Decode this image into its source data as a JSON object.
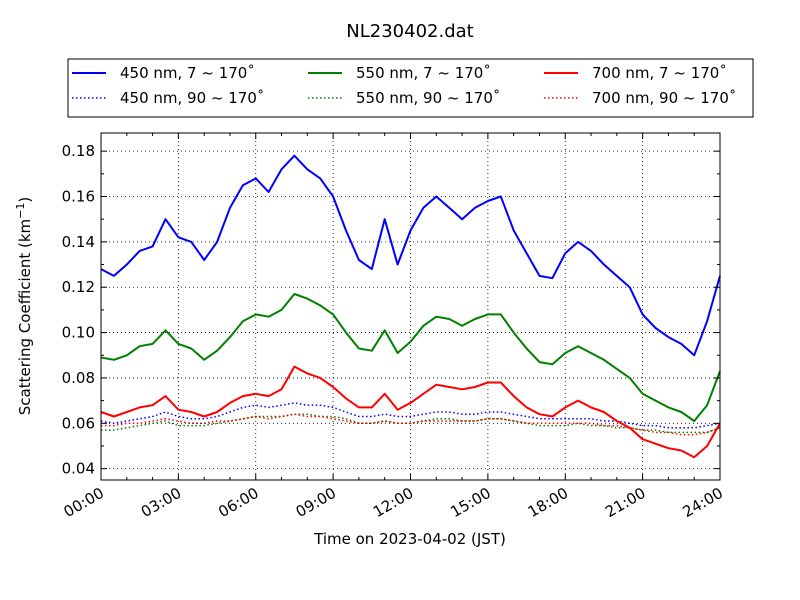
{
  "chart_data": {
    "type": "line",
    "title": "NL230402.dat",
    "xlabel": "Time on 2023-04-02 (JST)",
    "ylabel_text": "Scattering Coefficient (km",
    "ylabel_sup": "−1",
    "ylabel_close": ")",
    "xlim": [
      0,
      24
    ],
    "ylim": [
      0.035,
      0.188
    ],
    "grid": true,
    "legend_position": "top (above plot)",
    "x_ticks": [
      0,
      3,
      6,
      9,
      12,
      15,
      18,
      21,
      24
    ],
    "x_tick_labels": [
      "00:00",
      "03:00",
      "06:00",
      "09:00",
      "12:00",
      "15:00",
      "18:00",
      "21:00",
      "24:00"
    ],
    "y_ticks": [
      0.04,
      0.06,
      0.08,
      0.1,
      0.12,
      0.14,
      0.16,
      0.18
    ],
    "y_tick_labels": [
      "0.04",
      "0.06",
      "0.08",
      "0.10",
      "0.12",
      "0.14",
      "0.16",
      "0.18"
    ],
    "x_units": "hours",
    "series": [
      {
        "name": "450 nm, 7 ~ 170˚",
        "color": "#0000ff",
        "style": "solid",
        "x": [
          0,
          0.5,
          1,
          1.5,
          2,
          2.5,
          3,
          3.5,
          4,
          4.5,
          5,
          5.5,
          6,
          6.5,
          7,
          7.5,
          8,
          8.5,
          9,
          9.5,
          10,
          10.5,
          11,
          11.5,
          12,
          12.5,
          13,
          13.5,
          14,
          14.5,
          15,
          15.5,
          16,
          16.5,
          17,
          17.5,
          18,
          18.5,
          19,
          19.5,
          20,
          20.5,
          21,
          21.5,
          22,
          22.5,
          23,
          23.5,
          24
        ],
        "values": [
          0.128,
          0.125,
          0.13,
          0.136,
          0.138,
          0.15,
          0.142,
          0.14,
          0.132,
          0.14,
          0.155,
          0.165,
          0.168,
          0.162,
          0.172,
          0.178,
          0.172,
          0.168,
          0.16,
          0.145,
          0.132,
          0.128,
          0.15,
          0.13,
          0.145,
          0.155,
          0.16,
          0.155,
          0.15,
          0.155,
          0.158,
          0.16,
          0.145,
          0.135,
          0.125,
          0.124,
          0.135,
          0.14,
          0.136,
          0.13,
          0.125,
          0.12,
          0.108,
          0.102,
          0.098,
          0.095,
          0.09,
          0.105,
          0.125
        ]
      },
      {
        "name": "450 nm, 90 ~ 170˚",
        "color": "#0000ff",
        "style": "dotted",
        "x": [
          0,
          0.5,
          1,
          1.5,
          2,
          2.5,
          3,
          3.5,
          4,
          4.5,
          5,
          5.5,
          6,
          6.5,
          7,
          7.5,
          8,
          8.5,
          9,
          9.5,
          10,
          10.5,
          11,
          11.5,
          12,
          12.5,
          13,
          13.5,
          14,
          14.5,
          15,
          15.5,
          16,
          16.5,
          17,
          17.5,
          18,
          18.5,
          19,
          19.5,
          20,
          20.5,
          21,
          21.5,
          22,
          22.5,
          23,
          23.5,
          24
        ],
        "values": [
          0.061,
          0.06,
          0.061,
          0.062,
          0.063,
          0.065,
          0.063,
          0.062,
          0.062,
          0.063,
          0.065,
          0.067,
          0.068,
          0.067,
          0.068,
          0.069,
          0.068,
          0.068,
          0.067,
          0.065,
          0.063,
          0.063,
          0.064,
          0.063,
          0.063,
          0.064,
          0.065,
          0.065,
          0.064,
          0.064,
          0.065,
          0.065,
          0.064,
          0.063,
          0.062,
          0.062,
          0.062,
          0.062,
          0.062,
          0.061,
          0.061,
          0.06,
          0.059,
          0.059,
          0.058,
          0.058,
          0.058,
          0.059,
          0.06
        ]
      },
      {
        "name": "550 nm, 7 ~ 170˚",
        "color": "#008000",
        "style": "solid",
        "x": [
          0,
          0.5,
          1,
          1.5,
          2,
          2.5,
          3,
          3.5,
          4,
          4.5,
          5,
          5.5,
          6,
          6.5,
          7,
          7.5,
          8,
          8.5,
          9,
          9.5,
          10,
          10.5,
          11,
          11.5,
          12,
          12.5,
          13,
          13.5,
          14,
          14.5,
          15,
          15.5,
          16,
          16.5,
          17,
          17.5,
          18,
          18.5,
          19,
          19.5,
          20,
          20.5,
          21,
          21.5,
          22,
          22.5,
          23,
          23.5,
          24
        ],
        "values": [
          0.089,
          0.088,
          0.09,
          0.094,
          0.095,
          0.101,
          0.095,
          0.093,
          0.088,
          0.092,
          0.098,
          0.105,
          0.108,
          0.107,
          0.11,
          0.117,
          0.115,
          0.112,
          0.108,
          0.1,
          0.093,
          0.092,
          0.101,
          0.091,
          0.096,
          0.103,
          0.107,
          0.106,
          0.103,
          0.106,
          0.108,
          0.108,
          0.1,
          0.093,
          0.087,
          0.086,
          0.091,
          0.094,
          0.091,
          0.088,
          0.084,
          0.08,
          0.073,
          0.07,
          0.067,
          0.065,
          0.061,
          0.068,
          0.083
        ]
      },
      {
        "name": "550 nm, 90 ~ 170˚",
        "color": "#008000",
        "style": "dotted",
        "x": [
          0,
          0.5,
          1,
          1.5,
          2,
          2.5,
          3,
          3.5,
          4,
          4.5,
          5,
          5.5,
          6,
          6.5,
          7,
          7.5,
          8,
          8.5,
          9,
          9.5,
          10,
          10.5,
          11,
          11.5,
          12,
          12.5,
          13,
          13.5,
          14,
          14.5,
          15,
          15.5,
          16,
          16.5,
          17,
          17.5,
          18,
          18.5,
          19,
          19.5,
          20,
          20.5,
          21,
          21.5,
          22,
          22.5,
          23,
          23.5,
          24
        ],
        "values": [
          0.057,
          0.057,
          0.058,
          0.059,
          0.06,
          0.061,
          0.059,
          0.059,
          0.059,
          0.06,
          0.061,
          0.062,
          0.063,
          0.063,
          0.063,
          0.064,
          0.064,
          0.063,
          0.063,
          0.062,
          0.06,
          0.06,
          0.061,
          0.06,
          0.06,
          0.061,
          0.062,
          0.062,
          0.061,
          0.061,
          0.062,
          0.062,
          0.061,
          0.06,
          0.059,
          0.059,
          0.059,
          0.06,
          0.059,
          0.059,
          0.058,
          0.058,
          0.057,
          0.057,
          0.056,
          0.056,
          0.056,
          0.056,
          0.058
        ]
      },
      {
        "name": "700 nm, 7 ~ 170˚",
        "color": "#ff0000",
        "style": "solid",
        "x": [
          0,
          0.5,
          1,
          1.5,
          2,
          2.5,
          3,
          3.5,
          4,
          4.5,
          5,
          5.5,
          6,
          6.5,
          7,
          7.5,
          8,
          8.5,
          9,
          9.5,
          10,
          10.5,
          11,
          11.5,
          12,
          12.5,
          13,
          13.5,
          14,
          14.5,
          15,
          15.5,
          16,
          16.5,
          17,
          17.5,
          18,
          18.5,
          19,
          19.5,
          20,
          20.5,
          21,
          21.5,
          22,
          22.5,
          23,
          23.5,
          24
        ],
        "values": [
          0.065,
          0.063,
          0.065,
          0.067,
          0.068,
          0.072,
          0.066,
          0.065,
          0.063,
          0.065,
          0.069,
          0.072,
          0.073,
          0.072,
          0.075,
          0.085,
          0.082,
          0.08,
          0.076,
          0.071,
          0.067,
          0.067,
          0.073,
          0.066,
          0.069,
          0.073,
          0.077,
          0.076,
          0.075,
          0.076,
          0.078,
          0.078,
          0.072,
          0.067,
          0.064,
          0.063,
          0.067,
          0.07,
          0.067,
          0.065,
          0.061,
          0.058,
          0.053,
          0.051,
          0.049,
          0.048,
          0.045,
          0.05,
          0.06
        ]
      },
      {
        "name": "700 nm, 90 ~ 170˚",
        "color": "#ff0000",
        "style": "dotted",
        "x": [
          0,
          0.5,
          1,
          1.5,
          2,
          2.5,
          3,
          3.5,
          4,
          4.5,
          5,
          5.5,
          6,
          6.5,
          7,
          7.5,
          8,
          8.5,
          9,
          9.5,
          10,
          10.5,
          11,
          11.5,
          12,
          12.5,
          13,
          13.5,
          14,
          14.5,
          15,
          15.5,
          16,
          16.5,
          17,
          17.5,
          18,
          18.5,
          19,
          19.5,
          20,
          20.5,
          21,
          21.5,
          22,
          22.5,
          23,
          23.5,
          24
        ],
        "values": [
          0.059,
          0.059,
          0.06,
          0.06,
          0.061,
          0.062,
          0.061,
          0.06,
          0.06,
          0.061,
          0.061,
          0.062,
          0.063,
          0.062,
          0.063,
          0.064,
          0.063,
          0.063,
          0.062,
          0.061,
          0.06,
          0.06,
          0.061,
          0.06,
          0.06,
          0.061,
          0.061,
          0.061,
          0.061,
          0.061,
          0.062,
          0.062,
          0.061,
          0.06,
          0.06,
          0.06,
          0.06,
          0.06,
          0.06,
          0.059,
          0.059,
          0.058,
          0.057,
          0.056,
          0.056,
          0.055,
          0.055,
          0.056,
          0.058
        ]
      }
    ]
  }
}
